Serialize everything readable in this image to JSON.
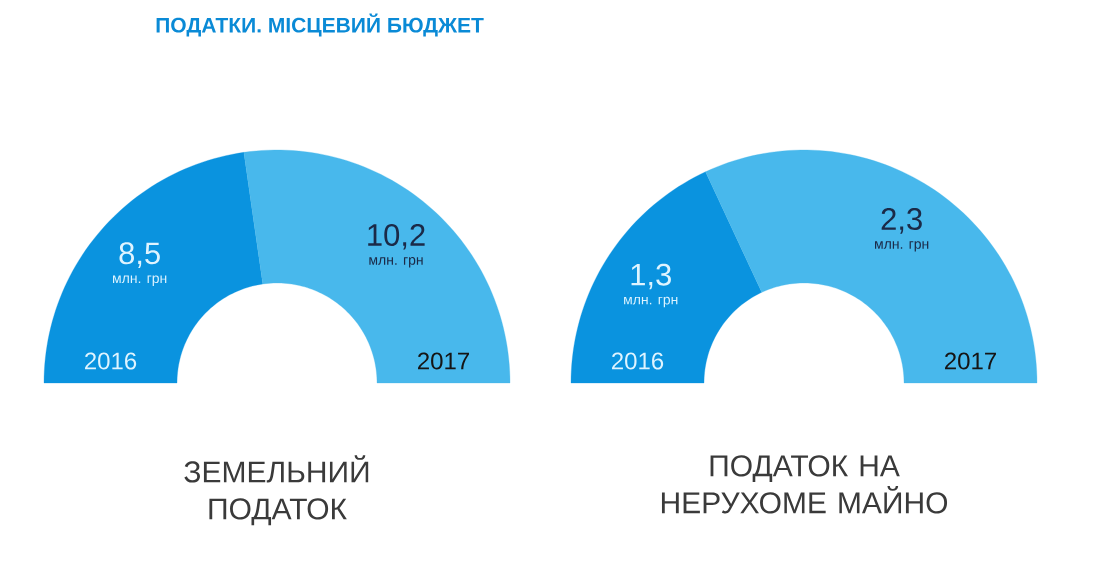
{
  "chart_data": [
    {
      "type": "donut",
      "title": "ПОДАТКИ. МІСЦЕВИЙ БЮДЖЕТ",
      "xlabel": "ЗЕМЕЛЬНИЙ ПОДАТОК",
      "categories": [
        "2016",
        "2017"
      ],
      "values": [
        8.5,
        10.2
      ],
      "colors": [
        "#0a93df",
        "#48b8ec"
      ],
      "value_labels": [
        "8,5",
        "10,2"
      ],
      "annotations": [
        "млн. грн",
        "млн. грн"
      ]
    },
    {
      "type": "donut",
      "xlabel": "ПОДАТОК НА НЕРУХОМЕ МАЙНО",
      "categories": [
        "2016",
        "2017"
      ],
      "values": [
        1.3,
        2.3
      ],
      "colors": [
        "#0a93df",
        "#48b8ec"
      ],
      "value_labels": [
        "1,3",
        "2,3"
      ],
      "annotations": [
        "млн. грн",
        "млн. грн"
      ]
    }
  ]
}
